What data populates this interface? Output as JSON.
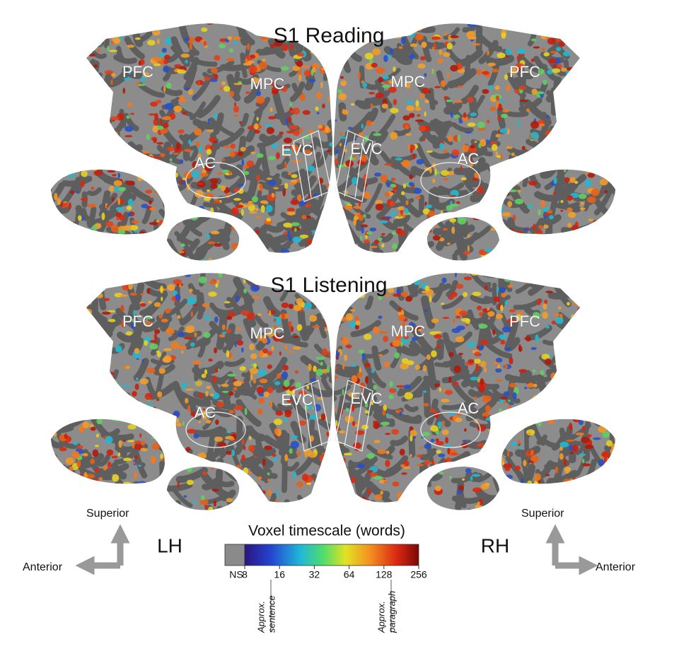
{
  "panels": [
    {
      "title": "S1 Reading",
      "left": {
        "regions": [
          "PFC",
          "MPC",
          "AC",
          "EVC"
        ]
      },
      "right": {
        "regions": [
          "MPC",
          "PFC",
          "EVC",
          "AC"
        ]
      }
    },
    {
      "title": "S1 Listening",
      "left": {
        "regions": [
          "PFC",
          "MPC",
          "AC",
          "EVC"
        ]
      },
      "right": {
        "regions": [
          "MPC",
          "PFC",
          "EVC",
          "AC"
        ]
      }
    }
  ],
  "hemispheres": {
    "left": "LH",
    "right": "RH"
  },
  "orientation": {
    "left": {
      "superior": "Superior",
      "anterior": "Anterior"
    },
    "right": {
      "superior": "Superior",
      "anterior": "Anterior"
    }
  },
  "colorbar": {
    "title": "Voxel timescale (words)",
    "ns_label": "NS",
    "log": true,
    "range": [
      8,
      256
    ],
    "ticks": [
      8,
      16,
      32,
      64,
      128,
      256
    ],
    "annotations": [
      [
        "Approx.",
        "sentence"
      ],
      [
        "Approx.",
        "paragraph"
      ]
    ]
  }
}
